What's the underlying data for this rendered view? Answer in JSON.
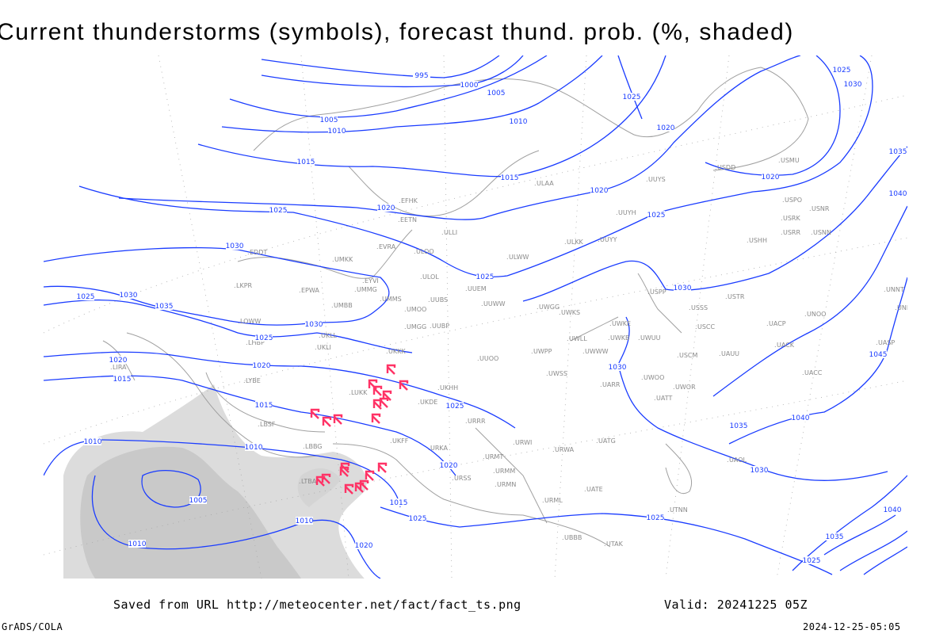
{
  "title": "Current thunderstorms (symbols), forecast thund. prob. (%, shaded)",
  "footer": {
    "source": "Saved from URL http://meteocenter.net/fact/fact_ts.png",
    "valid": "Valid: 20241225 05Z",
    "software": "GrADS/COLA",
    "timestamp": "2024-12-25-05:05"
  },
  "colors": {
    "isobar": "#1a3cff",
    "thunderstorm_symbol": "#ff3366",
    "probability_shading": "#d9d9d9",
    "coastline": "#a0a0a0",
    "station_label": "#8a8a8a"
  },
  "legend": {
    "thunderstorm_symbol_icon": "thunderstorm-icon",
    "shading": "thunderstorm probability (%)"
  },
  "isobar_labels": [
    "995",
    "1000",
    "1005",
    "1010",
    "1005",
    "1010",
    "1015",
    "1015",
    "1020",
    "1025",
    "1020",
    "1025",
    "1020",
    "1020",
    "1025",
    "1030",
    "1025",
    "1035",
    "1040",
    "1030",
    "1025",
    "1030",
    "1025",
    "1030",
    "1035",
    "1030",
    "1025",
    "1020",
    "1020",
    "1015",
    "1015",
    "1030",
    "1045",
    "1025",
    "1040",
    "1035",
    "1010",
    "1010",
    "1030",
    "1020",
    "1005",
    "1015",
    "1025",
    "1025",
    "1010",
    "1010",
    "1020",
    "1025",
    "1040",
    "1035"
  ],
  "stations": [
    "ULAA",
    "UUYS",
    "UUYH",
    "ULKK",
    "UUYY",
    "ULWW",
    "UWGG",
    "UWKS",
    "UWKE",
    "UWLL",
    "UWKB",
    "UWUU",
    "UWPP",
    "UWWW",
    "UWSS",
    "UARR",
    "USPP",
    "USSS",
    "USTR",
    "USCC",
    "USCM",
    "UAUU",
    "UWOO",
    "UWOR",
    "USHH",
    "USRK",
    "USRR",
    "USNN",
    "USNR",
    "USPO",
    "USMU",
    "USDD",
    "UNNT",
    "UNBB",
    "UNOO",
    "UACP",
    "UACK",
    "UASP",
    "UACC",
    "EFHK",
    "EETN",
    "ULLI",
    "EVRA",
    "ULOO",
    "UMKK",
    "EDDT",
    "EYVI",
    "ULOL",
    "UUEM",
    "LKPR",
    "EPWA",
    "UMMG",
    "UMMS",
    "UMOO",
    "UUBS",
    "UUWW",
    "UMBB",
    "LOWW",
    "UMGG",
    "UUBP",
    "UKLL",
    "LHBP",
    "UKLI",
    "UKKK",
    "UUOO",
    "LIRA",
    "LYBE",
    "LUKK",
    "UKHH",
    "UKDE",
    "URRR",
    "UKFF",
    "URKA",
    "URMT",
    "URMM",
    "URSS",
    "URMN",
    "URWA",
    "URWI",
    "UATG",
    "UATT",
    "UAOL",
    "URML",
    "UATE",
    "UTNN",
    "LBSF",
    "LBBG",
    "LTBA",
    "UBBB",
    "UTAK"
  ],
  "thunderstorm_count": 20
}
